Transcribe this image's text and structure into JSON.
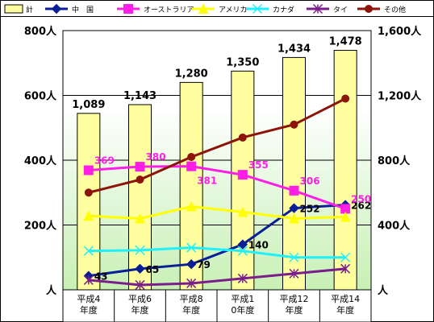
{
  "chart_data": {
    "type": "bar",
    "categories": [
      [
        "平成4",
        "年度"
      ],
      [
        "平成6",
        "年度"
      ],
      [
        "平成8",
        "年度"
      ],
      [
        "平成1",
        "0年度"
      ],
      [
        "平成12",
        "年度"
      ],
      [
        "平成14",
        "年度"
      ]
    ],
    "left_axis": {
      "ylim": [
        0,
        800
      ],
      "ticks": [
        0,
        200,
        400,
        600,
        800
      ],
      "tick_labels": [
        "人",
        "200人",
        "400人",
        "600人",
        "800人"
      ]
    },
    "right_axis": {
      "ylim": [
        0,
        1600
      ],
      "ticks": [
        0,
        400,
        800,
        1200,
        1600
      ],
      "tick_labels": [
        "人",
        "400人",
        "800人",
        "1,200人",
        "1,600人"
      ]
    },
    "bar_series": {
      "name": "計",
      "axis": "right",
      "color": "#FFFFA0",
      "values": [
        1089,
        1143,
        1280,
        1350,
        1434,
        1478
      ],
      "labels": [
        "1,089",
        "1,143",
        "1,280",
        "1,350",
        "1,434",
        "1,478"
      ]
    },
    "line_series": [
      {
        "name": "中　国",
        "axis": "left",
        "color": "#0A1E96",
        "marker": "diamond",
        "values": [
          43,
          65,
          79,
          140,
          252,
          262
        ],
        "labels": [
          "43",
          "65",
          "79",
          "140",
          "252",
          "262"
        ]
      },
      {
        "name": "オーストラリア",
        "axis": "left",
        "color": "#FF1EE6",
        "marker": "square",
        "values": [
          369,
          380,
          381,
          355,
          306,
          250
        ],
        "labels": [
          "369",
          "380",
          "381",
          "355",
          "306",
          "250"
        ]
      },
      {
        "name": "アメリカ",
        "axis": "left",
        "color": "#FFFF00",
        "marker": "triangle",
        "values": [
          228,
          220,
          257,
          240,
          220,
          225
        ]
      },
      {
        "name": "カナダ",
        "axis": "left",
        "color": "#1EF0FF",
        "marker": "x",
        "values": [
          120,
          122,
          130,
          120,
          100,
          100
        ]
      },
      {
        "name": "タイ",
        "axis": "left",
        "color": "#7A1E8C",
        "marker": "star",
        "values": [
          30,
          15,
          20,
          35,
          50,
          65
        ]
      },
      {
        "name": "その他",
        "axis": "left",
        "color": "#8C140A",
        "marker": "circle",
        "values": [
          300,
          340,
          410,
          470,
          510,
          590
        ]
      }
    ],
    "grid": false,
    "legend_position": "top"
  }
}
